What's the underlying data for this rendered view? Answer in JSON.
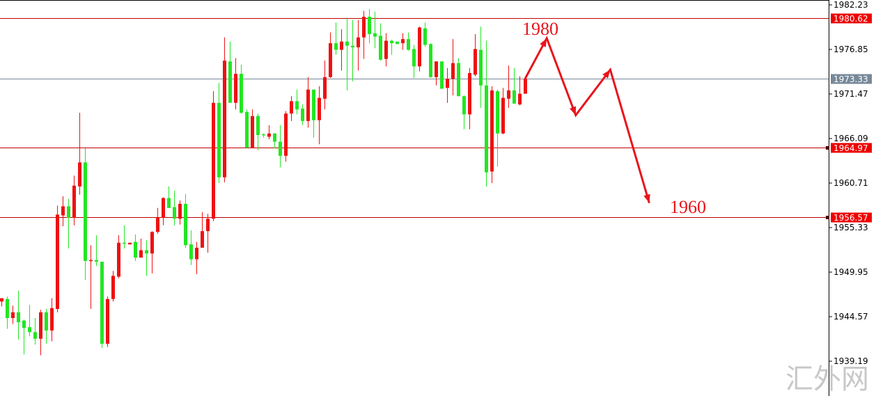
{
  "chart_data": {
    "type": "candlestick",
    "title": "",
    "ylim": [
      1939.19,
      1982.23
    ],
    "y_ticks": [
      "1982.23",
      "1976.85",
      "1971.47",
      "1966.09",
      "1960.71",
      "1955.33",
      "1949.95",
      "1944.57",
      "1939.19"
    ],
    "grid": false,
    "colors": {
      "up": "#ee1111",
      "down": "#22e622",
      "level_line": "#c00000",
      "price_line": "#778899",
      "annotation": "#e8141c",
      "axis": "#000000"
    },
    "candles_ohlc": [
      [
        1946.4,
        1946.8,
        1945.8,
        1946.8
      ],
      [
        1946.7,
        1947.0,
        1943.1,
        1944.4
      ],
      [
        1944.4,
        1945.9,
        1943.7,
        1945.1
      ],
      [
        1945.1,
        1947.7,
        1941.8,
        1943.9
      ],
      [
        1944.1,
        1944.2,
        1940.0,
        1943.2
      ],
      [
        1943.3,
        1946.0,
        1942.2,
        1942.7
      ],
      [
        1942.7,
        1944.4,
        1941.2,
        1941.9
      ],
      [
        1941.9,
        1945.4,
        1939.9,
        1945.1
      ],
      [
        1945.1,
        1945.5,
        1941.3,
        1942.9
      ],
      [
        1942.9,
        1946.8,
        1941.6,
        1945.6
      ],
      [
        1945.5,
        1958.0,
        1945.1,
        1956.9
      ],
      [
        1956.8,
        1959.1,
        1955.5,
        1957.9
      ],
      [
        1957.9,
        1958.8,
        1952.8,
        1956.5
      ],
      [
        1956.5,
        1961.6,
        1955.6,
        1960.4
      ],
      [
        1960.3,
        1969.2,
        1959.3,
        1963.2
      ],
      [
        1963.2,
        1964.9,
        1949.0,
        1951.3
      ],
      [
        1951.3,
        1953.2,
        1945.5,
        1951.4
      ],
      [
        1951.4,
        1954.4,
        1950.7,
        1951.2
      ],
      [
        1951.2,
        1951.2,
        1940.8,
        1941.3
      ],
      [
        1941.3,
        1947.0,
        1940.9,
        1946.7
      ],
      [
        1946.7,
        1950.1,
        1946.4,
        1949.5
      ],
      [
        1949.4,
        1954.4,
        1949.2,
        1953.5
      ],
      [
        1953.5,
        1955.6,
        1952.8,
        1953.4
      ],
      [
        1953.3,
        1953.5,
        1953.3,
        1953.5
      ],
      [
        1953.6,
        1954.5,
        1951.3,
        1951.7
      ],
      [
        1951.7,
        1954.0,
        1951.7,
        1952.6
      ],
      [
        1952.6,
        1953.8,
        1949.5,
        1952.2
      ],
      [
        1952.2,
        1954.9,
        1949.8,
        1954.8
      ],
      [
        1954.8,
        1957.7,
        1954.6,
        1956.5
      ],
      [
        1956.5,
        1959.0,
        1955.6,
        1958.9
      ],
      [
        1958.9,
        1960.3,
        1957.7,
        1957.7
      ],
      [
        1957.8,
        1959.8,
        1955.6,
        1956.4
      ],
      [
        1956.4,
        1958.6,
        1955.7,
        1958.2
      ],
      [
        1958.2,
        1959.4,
        1952.9,
        1953.2
      ],
      [
        1953.3,
        1955.0,
        1950.8,
        1951.5
      ],
      [
        1951.5,
        1953.6,
        1949.7,
        1952.9
      ],
      [
        1952.9,
        1957.2,
        1952.9,
        1954.9
      ],
      [
        1954.9,
        1957.0,
        1952.3,
        1956.4
      ],
      [
        1956.4,
        1971.8,
        1956.1,
        1970.4
      ],
      [
        1970.4,
        1972.8,
        1960.7,
        1961.4
      ],
      [
        1961.4,
        1978.3,
        1960.8,
        1975.5
      ],
      [
        1975.4,
        1977.8,
        1970.4,
        1970.4
      ],
      [
        1970.4,
        1975.8,
        1969.6,
        1973.9
      ],
      [
        1973.9,
        1975.0,
        1969.1,
        1969.2
      ],
      [
        1969.3,
        1969.6,
        1964.9,
        1965.0
      ],
      [
        1965.0,
        1969.6,
        1964.9,
        1968.8
      ],
      [
        1968.8,
        1969.1,
        1964.7,
        1966.5
      ],
      [
        1966.6,
        1966.7,
        1966.2,
        1966.5
      ],
      [
        1966.3,
        1967.7,
        1966.0,
        1966.7
      ],
      [
        1966.7,
        1966.7,
        1964.9,
        1965.7
      ],
      [
        1965.7,
        1967.7,
        1962.6,
        1964.0
      ],
      [
        1964.0,
        1969.4,
        1963.3,
        1969.1
      ],
      [
        1969.1,
        1971.2,
        1968.2,
        1970.6
      ],
      [
        1970.6,
        1972.0,
        1969.0,
        1969.6
      ],
      [
        1969.7,
        1970.2,
        1967.7,
        1968.2
      ],
      [
        1968.2,
        1973.5,
        1967.4,
        1972.0
      ],
      [
        1972.0,
        1972.0,
        1966.2,
        1968.3
      ],
      [
        1968.3,
        1972.4,
        1965.4,
        1971.0
      ],
      [
        1970.9,
        1975.5,
        1969.6,
        1973.5
      ],
      [
        1973.5,
        1978.9,
        1973.4,
        1977.6
      ],
      [
        1977.6,
        1980.1,
        1976.2,
        1976.8
      ],
      [
        1976.8,
        1979.3,
        1974.3,
        1977.8
      ],
      [
        1977.8,
        1980.7,
        1971.9,
        1977.3
      ],
      [
        1977.3,
        1980.4,
        1973.0,
        1977.1
      ],
      [
        1977.1,
        1980.4,
        1974.3,
        1978.3
      ],
      [
        1978.3,
        1981.5,
        1975.7,
        1980.8
      ],
      [
        1980.8,
        1981.7,
        1977.6,
        1978.7
      ],
      [
        1978.8,
        1981.4,
        1977.0,
        1978.4
      ],
      [
        1978.5,
        1980.0,
        1975.5,
        1975.6
      ],
      [
        1975.7,
        1978.8,
        1974.8,
        1977.9
      ],
      [
        1977.9,
        1978.0,
        1976.2,
        1977.6
      ],
      [
        1977.8,
        1977.8,
        1977.5,
        1977.5
      ],
      [
        1977.6,
        1978.8,
        1976.8,
        1978.1
      ],
      [
        1978.1,
        1978.9,
        1976.7,
        1976.8
      ],
      [
        1976.9,
        1977.4,
        1973.4,
        1974.8
      ],
      [
        1974.8,
        1979.6,
        1974.2,
        1979.5
      ],
      [
        1979.4,
        1980.1,
        1977.2,
        1977.4
      ],
      [
        1977.5,
        1977.6,
        1973.4,
        1973.5
      ],
      [
        1973.5,
        1975.4,
        1972.5,
        1975.4
      ],
      [
        1975.4,
        1975.4,
        1972.1,
        1972.1
      ],
      [
        1972.2,
        1974.6,
        1970.4,
        1973.3
      ],
      [
        1973.3,
        1978.1,
        1971.3,
        1975.2
      ],
      [
        1975.2,
        1975.8,
        1971.2,
        1971.2
      ],
      [
        1971.2,
        1971.3,
        1967.2,
        1969.0
      ],
      [
        1969.0,
        1974.6,
        1967.2,
        1974.0
      ],
      [
        1973.8,
        1978.7,
        1973.6,
        1976.9
      ],
      [
        1976.8,
        1979.6,
        1969.8,
        1972.5
      ],
      [
        1972.5,
        1977.9,
        1960.3,
        1962.0
      ],
      [
        1962.1,
        1972.4,
        1960.7,
        1971.9
      ],
      [
        1971.8,
        1972.0,
        1962.7,
        1966.7
      ],
      [
        1966.7,
        1972.2,
        1966.6,
        1971.0
      ],
      [
        1970.9,
        1974.9,
        1969.8,
        1971.9
      ],
      [
        1971.9,
        1974.6,
        1970.3,
        1970.3
      ],
      [
        1970.2,
        1973.6,
        1970.1,
        1971.5
      ],
      [
        1971.5,
        1973.3,
        1971.5,
        1973.3
      ]
    ],
    "level_lines": [
      {
        "price": 1980.62,
        "label": "1980.62",
        "tag_color": "#ee0000"
      },
      {
        "price": 1964.97,
        "label": "1964.97",
        "tag_color": "#ee0000"
      },
      {
        "price": 1956.57,
        "label": "1956.57",
        "tag_color": "#ee0000"
      }
    ],
    "current_price": {
      "price": 1973.33,
      "label": "1973.33",
      "tag_color": "#778899"
    },
    "forecast_path": {
      "bars_after_last": [
        0,
        3.9,
        9.1,
        15.3,
        22.3
      ],
      "prices": [
        1973.3,
        1978.2,
        1968.9,
        1974.4,
        1958.3
      ]
    },
    "annotations": [
      {
        "text": "1980",
        "price": 1980.0
      },
      {
        "text": "1960",
        "price": 1960.0
      }
    ]
  },
  "watermark": "汇外网"
}
